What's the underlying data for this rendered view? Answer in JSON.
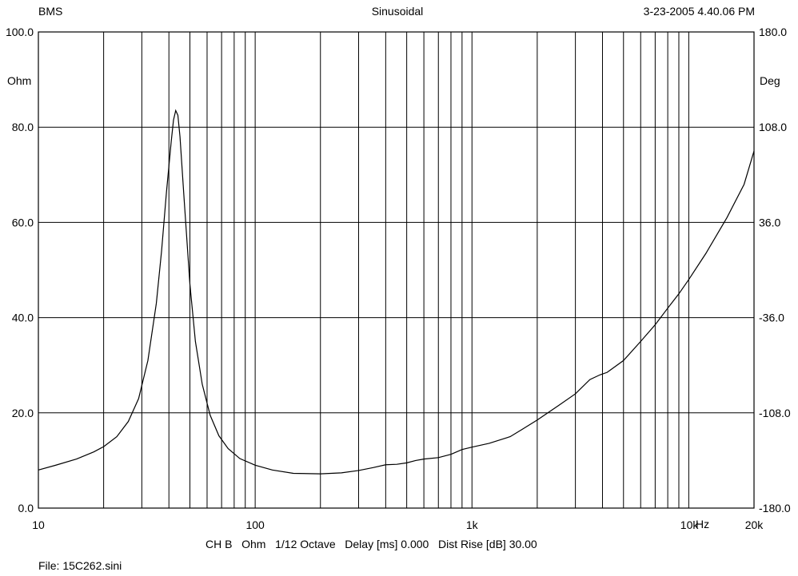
{
  "header": {
    "left": "BMS",
    "center": "Sinusoidal",
    "right": "3-23-2005 4.40.06 PM"
  },
  "footer": {
    "settings": "CH B   Ohm   1/12 Octave   Delay [ms] 0.000   Dist Rise [dB] 30.00",
    "file": "File: 15C262.sini"
  },
  "chart_data": {
    "type": "line",
    "title": "Sinusoidal",
    "xscale": "log",
    "xlim": [
      10,
      20000
    ],
    "ylim": [
      0,
      100
    ],
    "y2lim": [
      -180,
      180
    ],
    "ylabel": "Ohm",
    "y2label": "Deg",
    "xunit": "Hz",
    "grid": true,
    "x_tick_labels": [
      {
        "value": 10,
        "label": "10"
      },
      {
        "value": 100,
        "label": "100"
      },
      {
        "value": 1000,
        "label": "1k"
      },
      {
        "value": 10000,
        "label": "10k"
      },
      {
        "value": 20000,
        "label": "20k"
      }
    ],
    "y_tick_labels": [
      "0.0",
      "20.0",
      "40.0",
      "60.0",
      "80.0",
      "100.0"
    ],
    "y_tick_values": [
      0,
      20,
      40,
      60,
      80,
      100
    ],
    "y2_tick_labels": [
      "-180.0",
      "-108.0",
      "-36.0",
      "36.0",
      "108.0",
      "180.0"
    ],
    "series": [
      {
        "x": [
          10,
          12,
          15,
          18,
          20,
          23,
          26,
          29,
          32,
          35,
          37,
          39,
          41,
          42,
          43,
          44,
          45,
          47,
          50,
          53,
          57,
          62,
          68,
          75,
          85,
          100,
          120,
          150,
          200,
          250,
          300,
          350,
          400,
          450,
          500,
          550,
          600,
          700,
          800,
          900,
          1000,
          1200,
          1500,
          1700,
          2000,
          2500,
          3000,
          3500,
          3900,
          4200,
          5000,
          6000,
          7000,
          8000,
          9000,
          10000,
          12000,
          15000,
          18000,
          20000
        ],
        "values": [
          8.0,
          9.0,
          10.3,
          11.8,
          12.9,
          15.0,
          18.2,
          23.0,
          31.0,
          43.0,
          54.0,
          66.5,
          77.0,
          81.5,
          83.5,
          82.5,
          78.0,
          65.0,
          47.0,
          35.0,
          26.0,
          19.5,
          15.2,
          12.5,
          10.4,
          9.0,
          8.0,
          7.3,
          7.2,
          7.4,
          7.9,
          8.5,
          9.1,
          9.2,
          9.5,
          10.0,
          10.3,
          10.6,
          11.3,
          12.3,
          12.8,
          13.6,
          15.0,
          16.5,
          18.5,
          21.5,
          24.0,
          27.0,
          28.0,
          28.5,
          31.0,
          35.0,
          38.5,
          42.0,
          45.0,
          48.0,
          53.5,
          61.0,
          68.0,
          75.0
        ]
      }
    ]
  }
}
